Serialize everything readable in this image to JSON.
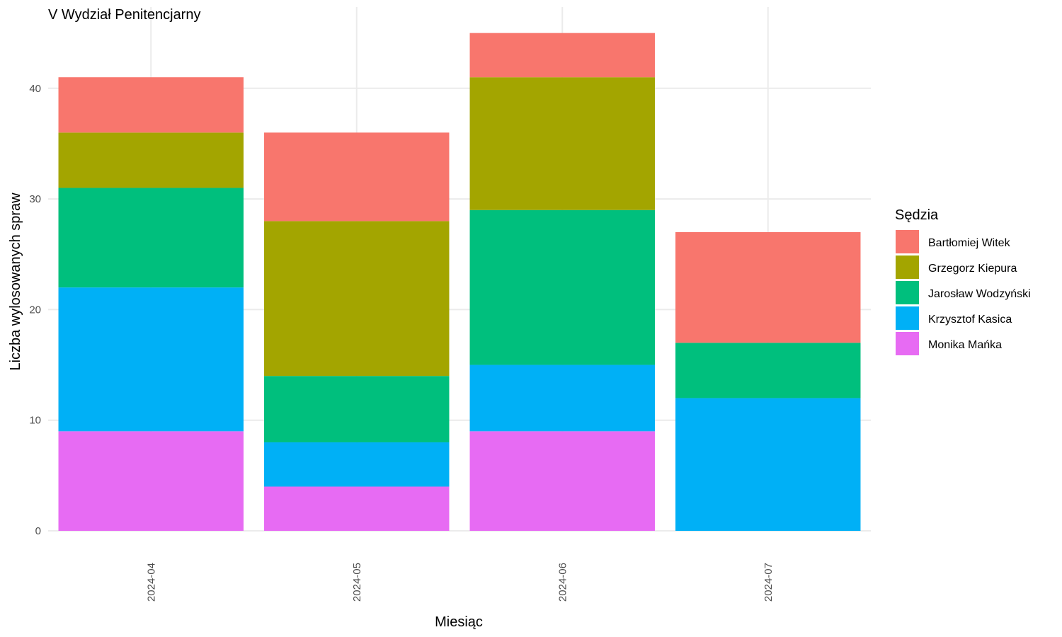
{
  "chart_data": {
    "type": "bar",
    "stacked": true,
    "title": "V Wydział Penitencjarny",
    "xlabel": "Miesiąc",
    "ylabel": "Liczba wylosowanych spraw",
    "categories": [
      "2024-04",
      "2024-05",
      "2024-06",
      "2024-07"
    ],
    "ylim": [
      0,
      47
    ],
    "yticks": [
      0,
      10,
      20,
      30,
      40
    ],
    "grid": true,
    "legend_title": "Sędzia",
    "legend_position": "right",
    "series": [
      {
        "name": "Monika Mańka",
        "color": "#E76BF3",
        "values": [
          9,
          4,
          9,
          0
        ]
      },
      {
        "name": "Krzysztof Kasica",
        "color": "#00B0F6",
        "values": [
          13,
          4,
          6,
          12
        ]
      },
      {
        "name": "Jarosław Wodzyński",
        "color": "#00BF7D",
        "values": [
          9,
          6,
          14,
          5
        ]
      },
      {
        "name": "Grzegorz Kiepura",
        "color": "#A3A500",
        "values": [
          5,
          14,
          12,
          0
        ]
      },
      {
        "name": "Bartłomiej Witek",
        "color": "#F8766D",
        "values": [
          5,
          8,
          4,
          10
        ]
      }
    ],
    "legend_order": [
      "Bartłomiej Witek",
      "Grzegorz Kiepura",
      "Jarosław Wodzyński",
      "Krzysztof Kasica",
      "Monika Mańka"
    ]
  }
}
